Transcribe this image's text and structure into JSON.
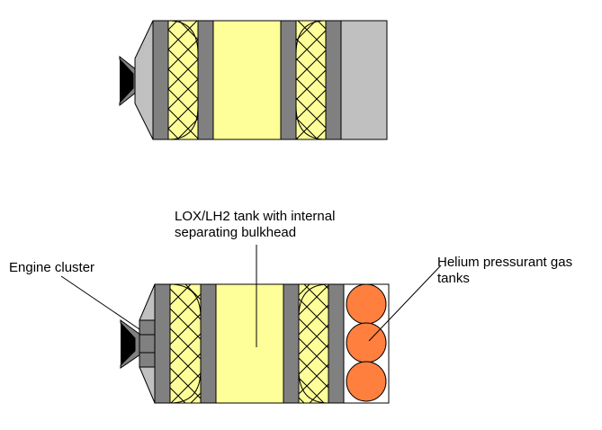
{
  "labels": {
    "lox_lh2_tank": "LOX/LH2 tank with internal\nseparating bulkhead",
    "engine_cluster": "Engine cluster",
    "helium_tanks": "Helium pressurant gas\ntanks"
  },
  "colors": {
    "background": "#ffffff",
    "outline": "#000000",
    "bulkhead": "#808080",
    "propellant": "#ffff99",
    "payload_section": "#c0c0c0",
    "helium_tank": "#ff7f3f",
    "nozzle": "#000000"
  }
}
